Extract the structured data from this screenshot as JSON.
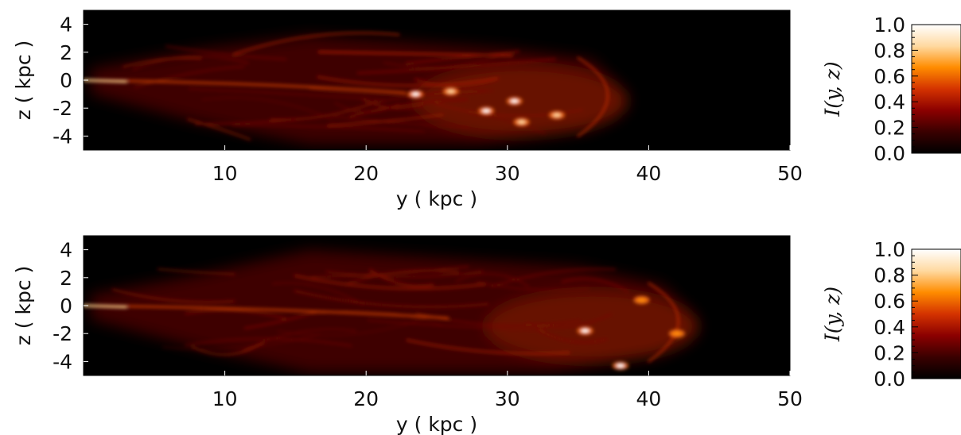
{
  "chart_data": [
    {
      "type": "heatmap",
      "title": "",
      "xlabel": "y ( kpc )",
      "ylabel": "z ( kpc )",
      "xlim": [
        0,
        50
      ],
      "ylim": [
        -5,
        5
      ],
      "xticks": [
        10,
        20,
        30,
        40,
        50
      ],
      "yticks": [
        4,
        2,
        0,
        -2,
        -4
      ],
      "xtick_labels": [
        "10",
        "20",
        "30",
        "40",
        "50"
      ],
      "ytick_labels": [
        "4",
        "2",
        "0",
        "-2",
        "-4"
      ],
      "jet": {
        "head_y": 38,
        "hotspots": [
          {
            "y": 23.5,
            "z": -1.0,
            "I": 1.0
          },
          {
            "y": 28.5,
            "z": -2.2,
            "I": 1.0
          },
          {
            "y": 30.5,
            "z": -1.5,
            "I": 0.95
          },
          {
            "y": 31.0,
            "z": -3.0,
            "I": 0.9
          },
          {
            "y": 33.5,
            "z": -2.5,
            "I": 0.75
          },
          {
            "y": 26.0,
            "z": -0.8,
            "I": 0.8
          }
        ]
      },
      "colorbar": {
        "label": "I(y, z)",
        "range": [
          0.0,
          1.0
        ],
        "ticks": [
          0.0,
          0.2,
          0.4,
          0.6,
          0.8,
          1.0
        ],
        "tick_labels": [
          "0.0",
          "0.2",
          "0.4",
          "0.6",
          "0.8",
          "1.0"
        ],
        "colors": [
          "#000000",
          "#3a0000",
          "#8b0000",
          "#d43300",
          "#ff8c00",
          "#ffd9a0",
          "#ffffff"
        ]
      }
    },
    {
      "type": "heatmap",
      "title": "",
      "xlabel": "y ( kpc )",
      "ylabel": "z ( kpc )",
      "xlim": [
        0,
        50
      ],
      "ylim": [
        -5,
        5
      ],
      "xticks": [
        10,
        20,
        30,
        40,
        50
      ],
      "yticks": [
        4,
        2,
        0,
        -2,
        -4
      ],
      "xtick_labels": [
        "10",
        "20",
        "30",
        "40",
        "50"
      ],
      "ytick_labels": [
        "4",
        "2",
        "0",
        "-2",
        "-4"
      ],
      "jet": {
        "head_y": 43,
        "hotspots": [
          {
            "y": 35.5,
            "z": -1.8,
            "I": 1.0
          },
          {
            "y": 38.0,
            "z": -4.3,
            "I": 0.95
          },
          {
            "y": 39.5,
            "z": 0.4,
            "I": 0.7
          },
          {
            "y": 42.0,
            "z": -2.0,
            "I": 0.6
          }
        ]
      },
      "colorbar": {
        "label": "I(y, z)",
        "range": [
          0.0,
          1.0
        ],
        "ticks": [
          0.0,
          0.2,
          0.4,
          0.6,
          0.8,
          1.0
        ],
        "tick_labels": [
          "0.0",
          "0.2",
          "0.4",
          "0.6",
          "0.8",
          "1.0"
        ],
        "colors": [
          "#000000",
          "#3a0000",
          "#8b0000",
          "#d43300",
          "#ff8c00",
          "#ffd9a0",
          "#ffffff"
        ]
      }
    }
  ]
}
